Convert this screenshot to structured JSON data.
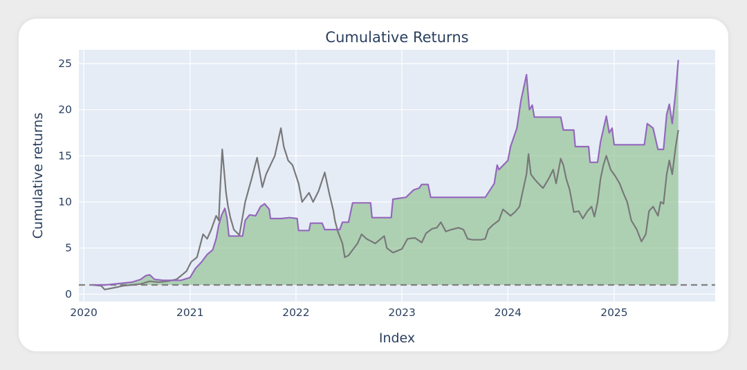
{
  "chart_data": {
    "type": "line",
    "title": "Cumulative Returns",
    "xlabel": "Index",
    "ylabel": "Cumulative returns",
    "xlim": [
      "2019-12-15",
      "2025-12-15"
    ],
    "ylim": [
      -0.8,
      26.5
    ],
    "x_ticks": [
      "2020",
      "2021",
      "2022",
      "2023",
      "2024",
      "2025"
    ],
    "y_ticks": [
      "0",
      "5",
      "10",
      "15",
      "20",
      "25"
    ],
    "grid": true,
    "legend": "none",
    "baseline": {
      "y": 1,
      "style": "dashed",
      "color": "#7f7f7f"
    },
    "fill": {
      "between": [
        "strategy",
        "baseline"
      ],
      "color": "#8fc28f",
      "opacity": 0.65
    },
    "series": [
      {
        "key": "strategy",
        "color": "#9467bd",
        "points": [
          [
            "2020-02-01",
            1.0
          ],
          [
            "2020-03-15",
            1.0
          ],
          [
            "2020-04-15",
            1.1
          ],
          [
            "2020-05-15",
            1.2
          ],
          [
            "2020-06-15",
            1.3
          ],
          [
            "2020-07-15",
            1.6
          ],
          [
            "2020-08-01",
            2.0
          ],
          [
            "2020-08-15",
            2.1
          ],
          [
            "2020-09-01",
            1.6
          ],
          [
            "2020-10-01",
            1.5
          ],
          [
            "2020-11-01",
            1.5
          ],
          [
            "2020-12-01",
            1.5
          ],
          [
            "2021-01-01",
            1.8
          ],
          [
            "2021-01-20",
            2.8
          ],
          [
            "2021-02-10",
            3.5
          ],
          [
            "2021-03-01",
            4.3
          ],
          [
            "2021-03-20",
            4.8
          ],
          [
            "2021-04-01",
            6.0
          ],
          [
            "2021-04-10",
            7.5
          ],
          [
            "2021-04-20",
            8.6
          ],
          [
            "2021-05-01",
            9.3
          ],
          [
            "2021-05-08",
            8.3
          ],
          [
            "2021-05-15",
            6.3
          ],
          [
            "2021-07-01",
            6.3
          ],
          [
            "2021-07-10",
            8.0
          ],
          [
            "2021-07-25",
            8.6
          ],
          [
            "2021-08-15",
            8.5
          ],
          [
            "2021-09-01",
            9.5
          ],
          [
            "2021-09-15",
            9.8
          ],
          [
            "2021-10-01",
            9.2
          ],
          [
            "2021-10-05",
            8.2
          ],
          [
            "2021-11-10",
            8.2
          ],
          [
            "2021-12-10",
            8.3
          ],
          [
            "2022-01-05",
            8.2
          ],
          [
            "2022-01-10",
            6.9
          ],
          [
            "2022-02-15",
            6.9
          ],
          [
            "2022-02-20",
            7.7
          ],
          [
            "2022-04-01",
            7.7
          ],
          [
            "2022-04-10",
            7.0
          ],
          [
            "2022-05-20",
            7.0
          ],
          [
            "2022-06-01",
            7.0
          ],
          [
            "2022-06-10",
            7.8
          ],
          [
            "2022-07-01",
            7.8
          ],
          [
            "2022-07-15",
            9.9
          ],
          [
            "2022-09-15",
            9.9
          ],
          [
            "2022-09-20",
            8.3
          ],
          [
            "2022-11-25",
            8.3
          ],
          [
            "2022-12-01",
            10.3
          ],
          [
            "2023-01-15",
            10.5
          ],
          [
            "2023-02-10",
            11.3
          ],
          [
            "2023-03-01",
            11.5
          ],
          [
            "2023-03-10",
            11.9
          ],
          [
            "2023-04-01",
            11.9
          ],
          [
            "2023-04-10",
            10.5
          ],
          [
            "2023-10-15",
            10.5
          ],
          [
            "2023-11-15",
            12.0
          ],
          [
            "2023-11-25",
            14.0
          ],
          [
            "2023-12-01",
            13.5
          ],
          [
            "2024-01-01",
            14.5
          ],
          [
            "2024-01-10",
            16.0
          ],
          [
            "2024-02-01",
            18.0
          ],
          [
            "2024-02-15",
            21.0
          ],
          [
            "2024-03-05",
            23.8
          ],
          [
            "2024-03-15",
            20.0
          ],
          [
            "2024-03-25",
            20.5
          ],
          [
            "2024-04-01",
            19.2
          ],
          [
            "2024-07-01",
            19.2
          ],
          [
            "2024-07-10",
            17.8
          ],
          [
            "2024-08-15",
            17.8
          ],
          [
            "2024-08-20",
            16.0
          ],
          [
            "2024-10-05",
            16.0
          ],
          [
            "2024-10-10",
            14.3
          ],
          [
            "2024-11-05",
            14.3
          ],
          [
            "2024-11-15",
            16.5
          ],
          [
            "2024-12-05",
            19.3
          ],
          [
            "2024-12-15",
            17.5
          ],
          [
            "2024-12-25",
            18.0
          ],
          [
            "2025-01-01",
            16.2
          ],
          [
            "2025-04-15",
            16.2
          ],
          [
            "2025-04-25",
            18.5
          ],
          [
            "2025-05-15",
            18.0
          ],
          [
            "2025-06-01",
            15.7
          ],
          [
            "2025-06-20",
            15.7
          ],
          [
            "2025-07-01",
            19.5
          ],
          [
            "2025-07-10",
            20.6
          ],
          [
            "2025-07-20",
            18.5
          ],
          [
            "2025-08-01",
            22.0
          ],
          [
            "2025-08-10",
            25.4
          ]
        ]
      },
      {
        "key": "benchmark",
        "color": "#787878",
        "points": [
          [
            "2020-02-01",
            1.0
          ],
          [
            "2020-03-01",
            0.9
          ],
          [
            "2020-03-13",
            0.5
          ],
          [
            "2020-04-15",
            0.7
          ],
          [
            "2020-05-15",
            0.9
          ],
          [
            "2020-06-15",
            1.0
          ],
          [
            "2020-07-15",
            1.1
          ],
          [
            "2020-08-15",
            1.4
          ],
          [
            "2020-09-15",
            1.3
          ],
          [
            "2020-10-15",
            1.4
          ],
          [
            "2020-11-15",
            1.6
          ],
          [
            "2020-12-01",
            2.0
          ],
          [
            "2020-12-20",
            2.5
          ],
          [
            "2021-01-05",
            3.5
          ],
          [
            "2021-01-25",
            4.0
          ],
          [
            "2021-02-15",
            6.5
          ],
          [
            "2021-03-01",
            6.0
          ],
          [
            "2021-03-15",
            7.0
          ],
          [
            "2021-04-01",
            8.5
          ],
          [
            "2021-04-10",
            8.0
          ],
          [
            "2021-04-14",
            11.0
          ],
          [
            "2021-04-22",
            15.7
          ],
          [
            "2021-05-05",
            11.0
          ],
          [
            "2021-05-12",
            9.5
          ],
          [
            "2021-05-20",
            8.3
          ],
          [
            "2021-06-01",
            7.0
          ],
          [
            "2021-06-20",
            6.4
          ],
          [
            "2021-07-10",
            10.0
          ],
          [
            "2021-08-01",
            12.5
          ],
          [
            "2021-08-20",
            14.8
          ],
          [
            "2021-09-07",
            11.6
          ],
          [
            "2021-09-20",
            13.0
          ],
          [
            "2021-10-20",
            15.0
          ],
          [
            "2021-11-10",
            18.0
          ],
          [
            "2021-11-20",
            16.0
          ],
          [
            "2021-12-05",
            14.5
          ],
          [
            "2021-12-20",
            14.0
          ],
          [
            "2022-01-10",
            12.0
          ],
          [
            "2022-01-22",
            10.0
          ],
          [
            "2022-02-15",
            11.0
          ],
          [
            "2022-03-01",
            10.0
          ],
          [
            "2022-03-20",
            11.2
          ],
          [
            "2022-04-10",
            13.2
          ],
          [
            "2022-04-25",
            11.0
          ],
          [
            "2022-05-10",
            9.0
          ],
          [
            "2022-05-15",
            8.0
          ],
          [
            "2022-05-25",
            6.8
          ],
          [
            "2022-06-10",
            5.5
          ],
          [
            "2022-06-18",
            4.0
          ],
          [
            "2022-07-01",
            4.2
          ],
          [
            "2022-08-01",
            5.5
          ],
          [
            "2022-08-15",
            6.5
          ],
          [
            "2022-09-01",
            6.0
          ],
          [
            "2022-10-01",
            5.5
          ],
          [
            "2022-11-01",
            6.3
          ],
          [
            "2022-11-10",
            5.0
          ],
          [
            "2022-12-01",
            4.5
          ],
          [
            "2023-01-01",
            4.9
          ],
          [
            "2023-01-20",
            6.0
          ],
          [
            "2023-02-15",
            6.1
          ],
          [
            "2023-03-10",
            5.6
          ],
          [
            "2023-03-25",
            6.6
          ],
          [
            "2023-04-15",
            7.1
          ],
          [
            "2023-05-01",
            7.2
          ],
          [
            "2023-05-15",
            7.8
          ],
          [
            "2023-06-01",
            6.8
          ],
          [
            "2023-06-20",
            7.0
          ],
          [
            "2023-07-15",
            7.2
          ],
          [
            "2023-08-01",
            7.0
          ],
          [
            "2023-08-15",
            6.0
          ],
          [
            "2023-09-01",
            5.9
          ],
          [
            "2023-10-01",
            5.9
          ],
          [
            "2023-10-15",
            6.0
          ],
          [
            "2023-10-25",
            7.0
          ],
          [
            "2023-11-10",
            7.5
          ],
          [
            "2023-12-01",
            8.0
          ],
          [
            "2023-12-15",
            9.2
          ],
          [
            "2024-01-10",
            8.5
          ],
          [
            "2024-01-25",
            8.9
          ],
          [
            "2024-02-10",
            9.5
          ],
          [
            "2024-02-20",
            11.0
          ],
          [
            "2024-03-05",
            13.0
          ],
          [
            "2024-03-12",
            15.2
          ],
          [
            "2024-03-20",
            13.0
          ],
          [
            "2024-04-01",
            12.5
          ],
          [
            "2024-04-15",
            12.0
          ],
          [
            "2024-05-01",
            11.5
          ],
          [
            "2024-05-20",
            12.5
          ],
          [
            "2024-06-05",
            13.5
          ],
          [
            "2024-06-15",
            12.0
          ],
          [
            "2024-07-01",
            14.7
          ],
          [
            "2024-07-10",
            14.0
          ],
          [
            "2024-07-20",
            12.5
          ],
          [
            "2024-08-01",
            11.3
          ],
          [
            "2024-08-15",
            8.9
          ],
          [
            "2024-09-01",
            9.0
          ],
          [
            "2024-09-15",
            8.2
          ],
          [
            "2024-10-01",
            9.0
          ],
          [
            "2024-10-15",
            9.5
          ],
          [
            "2024-10-25",
            8.4
          ],
          [
            "2024-11-05",
            10.0
          ],
          [
            "2024-11-15",
            12.5
          ],
          [
            "2024-11-25",
            14.0
          ],
          [
            "2024-12-05",
            15.0
          ],
          [
            "2024-12-20",
            13.5
          ],
          [
            "2025-01-05",
            12.8
          ],
          [
            "2025-01-20",
            12.0
          ],
          [
            "2025-02-01",
            11.0
          ],
          [
            "2025-02-15",
            10.0
          ],
          [
            "2025-03-01",
            8.0
          ],
          [
            "2025-03-20",
            7.0
          ],
          [
            "2025-04-05",
            5.7
          ],
          [
            "2025-04-20",
            6.5
          ],
          [
            "2025-05-01",
            9.0
          ],
          [
            "2025-05-15",
            9.5
          ],
          [
            "2025-06-01",
            8.5
          ],
          [
            "2025-06-10",
            10.0
          ],
          [
            "2025-06-20",
            9.8
          ],
          [
            "2025-07-01",
            13.0
          ],
          [
            "2025-07-10",
            14.5
          ],
          [
            "2025-07-20",
            13.0
          ],
          [
            "2025-08-01",
            16.0
          ],
          [
            "2025-08-10",
            17.8
          ]
        ]
      }
    ]
  }
}
